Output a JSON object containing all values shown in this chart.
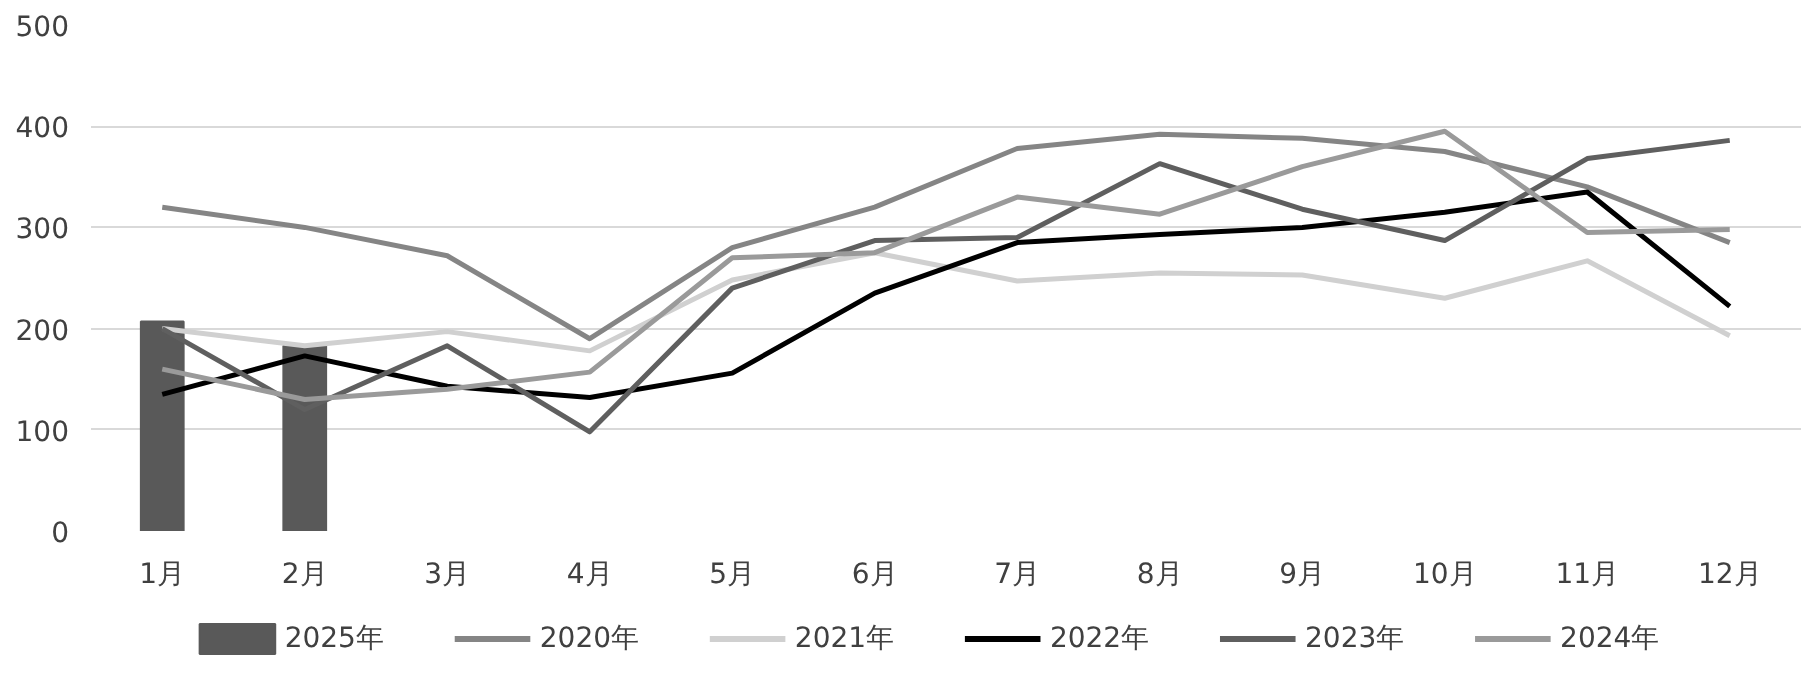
{
  "chart_data": {
    "type": "line",
    "categories": [
      "1月",
      "2月",
      "3月",
      "4月",
      "5月",
      "6月",
      "7月",
      "8月",
      "9月",
      "10月",
      "11月",
      "12月"
    ],
    "ylim": [
      0,
      500
    ],
    "yticks": [
      0,
      100,
      200,
      300,
      400,
      500
    ],
    "grid": "y",
    "legend": "bottom",
    "series": [
      {
        "name": "2025年",
        "type": "bar",
        "color": "#595959",
        "values": [
          207,
          183,
          null,
          null,
          null,
          null,
          null,
          null,
          null,
          null,
          null,
          null
        ]
      },
      {
        "name": "2020年",
        "color": "#858585",
        "values": [
          320,
          300,
          272,
          190,
          280,
          320,
          378,
          392,
          388,
          375,
          340,
          285
        ]
      },
      {
        "name": "2021年",
        "color": "#d0d0d0",
        "values": [
          200,
          183,
          197,
          178,
          248,
          275,
          247,
          255,
          253,
          230,
          267,
          193
        ]
      },
      {
        "name": "2022年",
        "color": "#000000",
        "values": [
          135,
          173,
          143,
          132,
          156,
          235,
          285,
          293,
          300,
          315,
          335,
          222
        ]
      },
      {
        "name": "2023年",
        "color": "#5f5f5f",
        "values": [
          200,
          120,
          183,
          98,
          240,
          287,
          290,
          363,
          318,
          287,
          368,
          386
        ]
      },
      {
        "name": "2024年",
        "color": "#9a9a9a",
        "values": [
          160,
          130,
          140,
          157,
          270,
          275,
          330,
          313,
          360,
          395,
          295,
          298
        ]
      }
    ]
  }
}
